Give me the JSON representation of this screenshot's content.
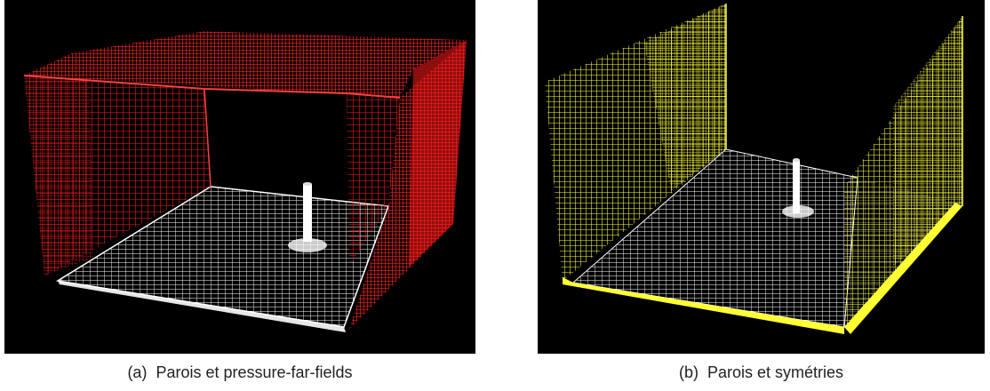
{
  "figure": {
    "panels": [
      {
        "label": "(a)",
        "caption": "Parois et pressure-far-fields",
        "boundary_color": "#ff1a1a",
        "boundary_type": "pressure-far-field",
        "floor_color": "#ffffff"
      },
      {
        "label": "(b)",
        "caption": "Parois et symétries",
        "boundary_color": "#ffff33",
        "boundary_type": "symmetry",
        "floor_color": "#ffffff"
      }
    ]
  }
}
